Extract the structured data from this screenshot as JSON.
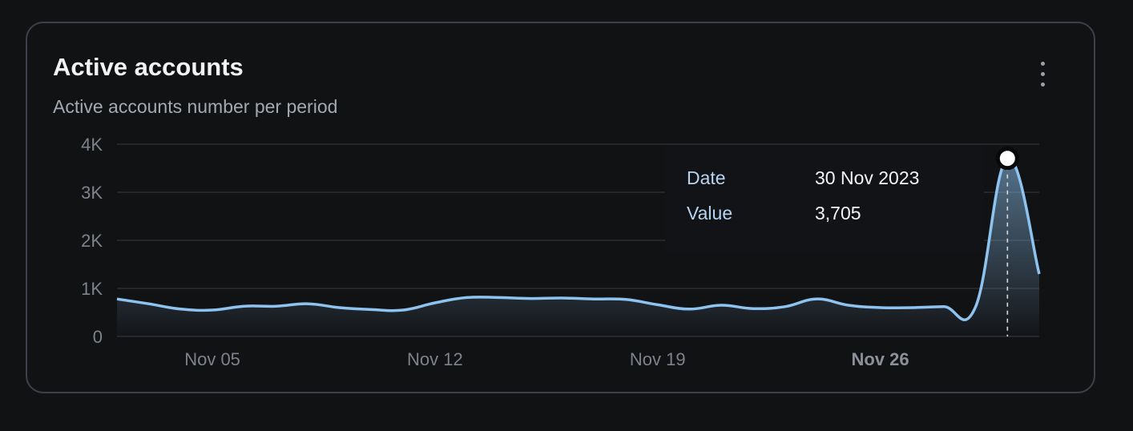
{
  "card": {
    "title": "Active accounts",
    "subtitle": "Active accounts number per period"
  },
  "menu_icon": "vertical-dots-icon",
  "tooltip": {
    "date_label": "Date",
    "date_value": "30 Nov 2023",
    "value_label": "Value",
    "value_value": "3,705"
  },
  "colors": {
    "line": "#8ec3ef",
    "background": "#111214",
    "grid": "#2a2c31"
  },
  "chart_data": {
    "type": "area",
    "x_ticks": [
      "Nov 05",
      "Nov 12",
      "Nov 19",
      "Nov 26"
    ],
    "x_tick_bold": "Nov 26",
    "y_ticks": [
      "0",
      "1K",
      "2K",
      "3K",
      "4K"
    ],
    "ylim": [
      0,
      4000
    ],
    "xlim": [
      "2023-11-02",
      "2023-12-01"
    ],
    "grid": true,
    "series": [
      {
        "x": [
          "2023-11-02",
          "2023-11-03",
          "2023-11-04",
          "2023-11-05",
          "2023-11-06",
          "2023-11-07",
          "2023-11-08",
          "2023-11-09",
          "2023-11-10",
          "2023-11-11",
          "2023-11-12",
          "2023-11-13",
          "2023-11-14",
          "2023-11-15",
          "2023-11-16",
          "2023-11-17",
          "2023-11-18",
          "2023-11-19",
          "2023-11-20",
          "2023-11-21",
          "2023-11-22",
          "2023-11-23",
          "2023-11-24",
          "2023-11-25",
          "2023-11-26",
          "2023-11-27",
          "2023-11-28",
          "2023-11-29",
          "2023-11-30",
          "2023-12-01"
        ],
        "values": [
          780,
          680,
          570,
          550,
          630,
          630,
          680,
          600,
          560,
          550,
          700,
          810,
          810,
          790,
          800,
          780,
          770,
          660,
          570,
          650,
          580,
          620,
          780,
          650,
          600,
          600,
          620,
          620,
          3705,
          1300
        ]
      }
    ],
    "highlight": {
      "x": "2023-11-30",
      "y": 3705
    }
  }
}
